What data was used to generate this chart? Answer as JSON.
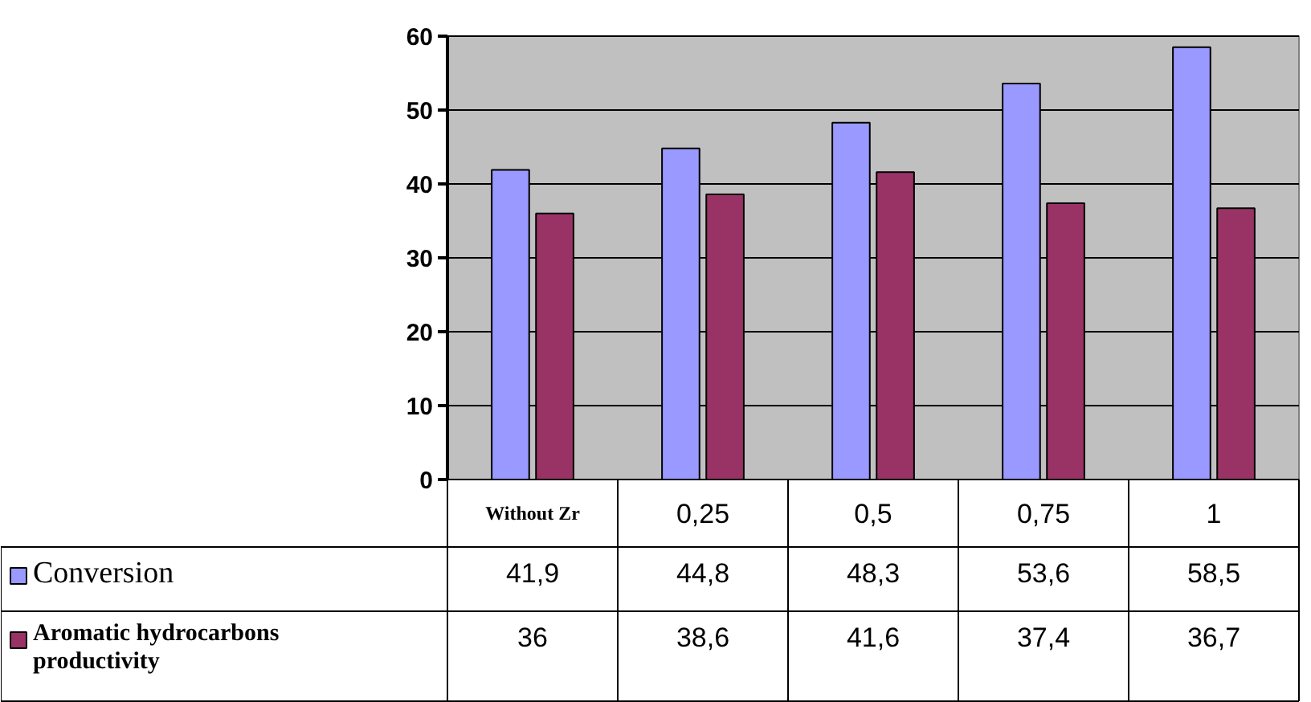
{
  "chart_data": {
    "type": "bar",
    "categories": [
      "Without Zr",
      "0,25",
      "0,5",
      "0,75",
      "1"
    ],
    "series": [
      {
        "name": "Conversion",
        "color": "#9999ff",
        "values": [
          41.9,
          44.8,
          48.3,
          53.6,
          58.5
        ],
        "value_labels": [
          "41,9",
          "44,8",
          "48,3",
          "53,6",
          "58,5"
        ]
      },
      {
        "name": "Aromatic hydrocarbons productivity",
        "color": "#993366",
        "values": [
          36,
          38.6,
          41.6,
          37.4,
          36.7
        ],
        "value_labels": [
          "36",
          "38,6",
          "41,6",
          "37,4",
          "36,7"
        ]
      }
    ],
    "ylim": [
      0,
      60
    ],
    "yticks": [
      0,
      10,
      20,
      30,
      40,
      50,
      60
    ],
    "grid": "y",
    "legend": "bottom left"
  }
}
